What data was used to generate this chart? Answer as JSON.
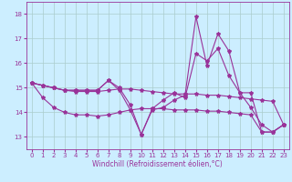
{
  "xlabel": "Windchill (Refroidissement éolien,°C)",
  "x": [
    0,
    1,
    2,
    3,
    4,
    5,
    6,
    7,
    8,
    9,
    10,
    11,
    12,
    13,
    14,
    15,
    16,
    17,
    18,
    19,
    20,
    21,
    22,
    23
  ],
  "lines": [
    [
      15.2,
      15.1,
      15.0,
      14.9,
      14.9,
      14.9,
      14.9,
      15.3,
      15.0,
      14.3,
      13.1,
      14.1,
      14.2,
      14.5,
      14.7,
      17.9,
      15.9,
      17.2,
      16.5,
      14.8,
      14.8,
      13.2,
      13.2,
      13.5
    ],
    [
      15.2,
      15.1,
      15.0,
      14.9,
      14.85,
      14.85,
      14.85,
      14.9,
      14.95,
      14.95,
      14.9,
      14.85,
      14.8,
      14.75,
      14.75,
      14.75,
      14.7,
      14.7,
      14.65,
      14.6,
      14.55,
      14.5,
      14.45,
      13.5
    ],
    [
      15.2,
      14.6,
      14.2,
      14.0,
      13.9,
      13.9,
      13.85,
      13.9,
      14.0,
      14.1,
      14.15,
      14.15,
      14.15,
      14.1,
      14.1,
      14.1,
      14.05,
      14.05,
      14.0,
      13.95,
      13.9,
      13.2,
      13.2,
      13.5
    ],
    [
      15.2,
      15.1,
      15.0,
      14.9,
      14.9,
      14.9,
      14.9,
      15.3,
      14.9,
      14.1,
      13.1,
      14.15,
      14.5,
      14.8,
      14.6,
      16.4,
      16.1,
      16.6,
      15.5,
      14.8,
      14.2,
      13.5,
      13.2,
      13.5
    ]
  ],
  "line_color": "#993399",
  "marker": "*",
  "markersize": 3,
  "linewidth": 0.8,
  "background_color": "#cceeff",
  "grid_color": "#aacccc",
  "ylim": [
    12.5,
    18.5
  ],
  "yticks": [
    13,
    14,
    15,
    16,
    17,
    18
  ],
  "xticks": [
    0,
    1,
    2,
    3,
    4,
    5,
    6,
    7,
    8,
    9,
    10,
    11,
    12,
    13,
    14,
    15,
    16,
    17,
    18,
    19,
    20,
    21,
    22,
    23
  ],
  "tick_fontsize": 5.0,
  "xlabel_fontsize": 5.5
}
